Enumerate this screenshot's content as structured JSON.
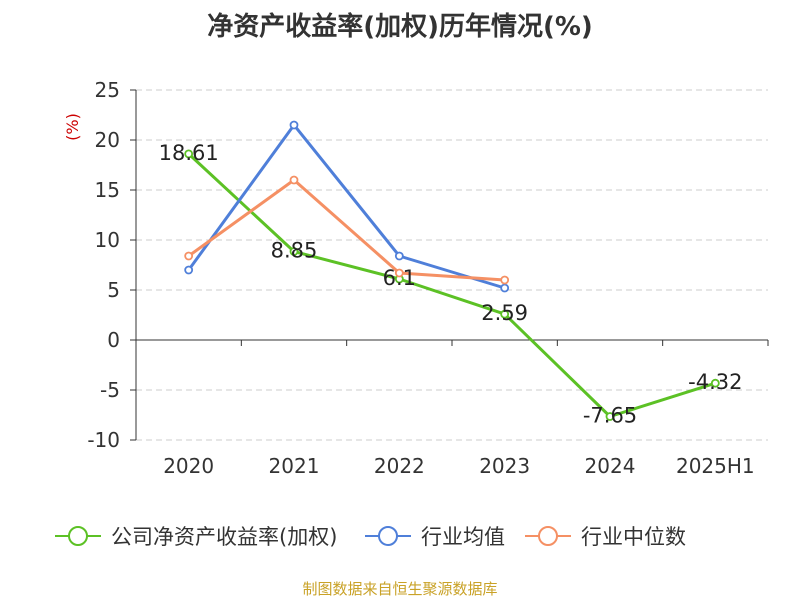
{
  "chart_data": {
    "type": "line",
    "title": "净资产收益率(加权)历年情况(%)",
    "ylabel": "(%)",
    "categories": [
      "2020",
      "2021",
      "2022",
      "2023",
      "2024",
      "2025H1"
    ],
    "ylim": [
      -10,
      25
    ],
    "yticks": [
      "25",
      "20",
      "15",
      "10",
      "5",
      "0",
      "-5",
      "-10"
    ],
    "grid": true,
    "legend_position": "bottom",
    "series": [
      {
        "name": "公司净资产收益率(加权)",
        "color": "#5cc125",
        "values": [
          18.61,
          8.85,
          6.1,
          2.59,
          -7.65,
          -4.32
        ],
        "labels": [
          "18.61",
          "8.85",
          "6.1",
          "2.59",
          "-7.65",
          "-4.32"
        ]
      },
      {
        "name": "行业均值",
        "color": "#4f7fd9",
        "values": [
          7.0,
          21.5,
          8.4,
          5.2,
          null,
          null
        ]
      },
      {
        "name": "行业中位数",
        "color": "#f59064",
        "values": [
          8.4,
          16.0,
          6.7,
          6.0,
          null,
          null
        ]
      }
    ]
  },
  "footer": {
    "source": "制图数据来自恒生聚源数据库"
  }
}
